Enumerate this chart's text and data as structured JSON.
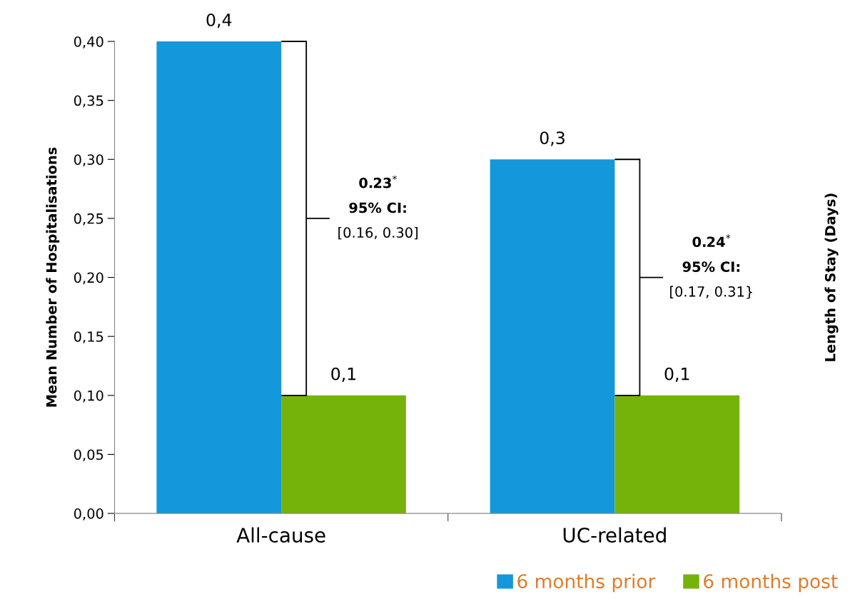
{
  "chart_data": {
    "type": "bar",
    "ylabel": "Mean Number of Hospitalisations",
    "y2label": "Length of Stay (Days)",
    "categories": [
      "All-cause",
      "UC-related"
    ],
    "series": [
      {
        "name": "6 months prior",
        "color": "#1497db",
        "values": [
          0.4,
          0.3
        ],
        "value_labels": [
          "0,4",
          "0,3"
        ]
      },
      {
        "name": "6 months post",
        "color": "#76b30a",
        "values": [
          0.1,
          0.1
        ],
        "value_labels": [
          "0,1",
          "0,1"
        ]
      }
    ],
    "ylim": [
      0,
      0.4
    ],
    "yticks": [
      {
        "value": 0,
        "label": "0,00"
      },
      {
        "value": 0.05,
        "label": "0,05"
      },
      {
        "value": 0.1,
        "label": "0,10"
      },
      {
        "value": 0.15,
        "label": "0,15"
      },
      {
        "value": 0.2,
        "label": "0,20"
      },
      {
        "value": 0.25,
        "label": "0,25"
      },
      {
        "value": 0.3,
        "label": "0,30"
      },
      {
        "value": 0.35,
        "label": "0,35"
      },
      {
        "value": 0.4,
        "label": "0,40"
      }
    ],
    "annotations": [
      [
        "0.23$^{*}$",
        "95% CI:",
        "[0.16, 0.30]"
      ],
      [
        "0.24$^{*}$",
        "95% CI:",
        "[0.17, 0.31}"
      ]
    ],
    "legend": "bottom right"
  }
}
